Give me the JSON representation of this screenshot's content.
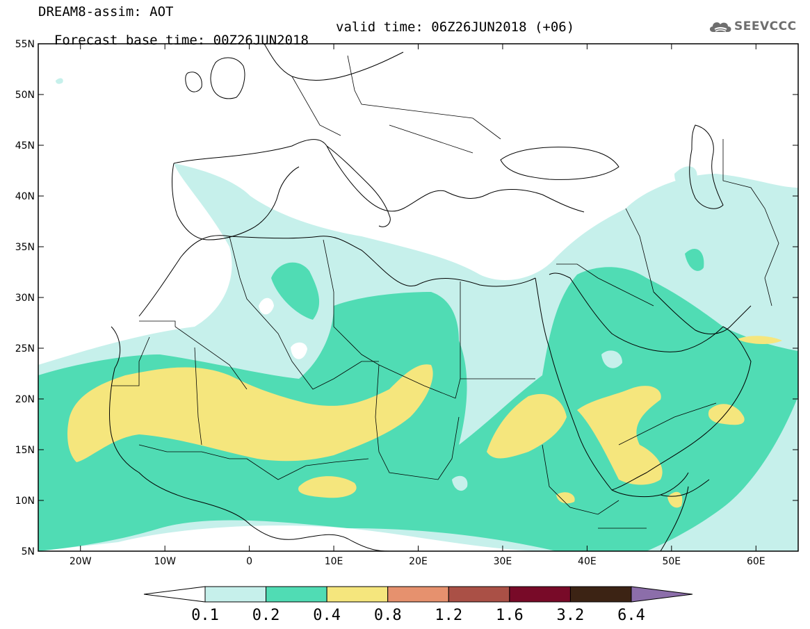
{
  "title": {
    "line1": "DREAM8-assim: AOT",
    "line2_base": "Forecast base time: 00Z26JUN2018",
    "line2_valid": "valid time: 06Z26JUN2018 (+06)"
  },
  "logo": {
    "text": "SEEVCCC",
    "icon": "cloud-icon"
  },
  "map": {
    "lon_range": [
      -25,
      65
    ],
    "lat_range": [
      5,
      55
    ],
    "lat_ticks": [
      "55N",
      "50N",
      "45N",
      "40N",
      "35N",
      "30N",
      "25N",
      "20N",
      "15N",
      "10N",
      "5N"
    ],
    "lon_ticks": [
      "20W",
      "10W",
      "0",
      "10E",
      "20E",
      "30E",
      "40E",
      "50E",
      "60E"
    ]
  },
  "colorbar": {
    "labels": [
      "0.1",
      "0.2",
      "0.4",
      "0.8",
      "1.2",
      "1.6",
      "3.2",
      "6.4"
    ],
    "colors": [
      "#ffffff",
      "#c6f0eb",
      "#50dcb4",
      "#f5e67d",
      "#e6916e",
      "#aa5046",
      "#780a28",
      "#3c2314",
      "#8c6eaa"
    ]
  }
}
